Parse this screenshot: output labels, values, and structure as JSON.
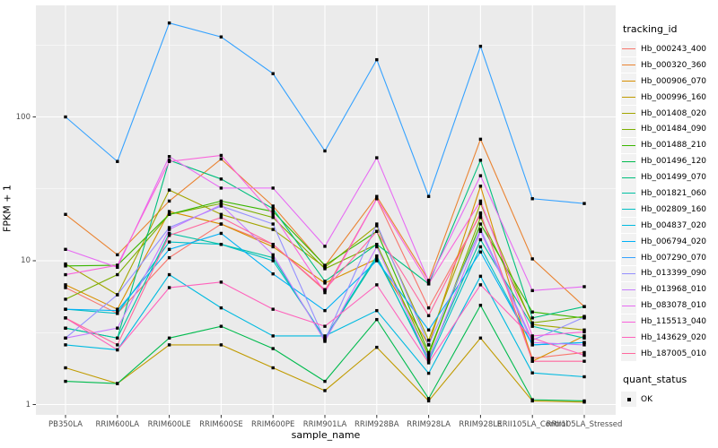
{
  "chart_data": {
    "type": "line",
    "title": "",
    "xlabel": "sample_name",
    "ylabel": "FPKM + 1",
    "y_scale": "log10",
    "y_ticks": [
      100,
      10,
      1
    ],
    "y_minor_gridlines": [
      3.162,
      31.62,
      316.2
    ],
    "ylim": [
      0.8,
      600
    ],
    "grid": "on",
    "legend_position": "right",
    "panel_background": "#EBEBEB",
    "gridline_color": "#FFFFFF",
    "axis_text_color": "#4D4D4D",
    "point_shape": "filled-square",
    "point_color": "#000000",
    "categories": [
      "PB350LA",
      "RRIM600LA",
      "RRIM600LE",
      "RRIM600SE",
      "RRIM600PE",
      "RRIM901LA",
      "RRIM928BA",
      "RRIM928LA",
      "RRIM928LE",
      "RRII105LA_Control",
      "RRII105LA_Stressed"
    ],
    "series": [
      {
        "name": "Hb_000243_400",
        "color": "#F8766D",
        "values": [
          6.5,
          4.3,
          10.5,
          18,
          13,
          6.2,
          27,
          4.7,
          21,
          2.1,
          2.3
        ]
      },
      {
        "name": "Hb_000320_360",
        "color": "#EA8331",
        "values": [
          21,
          11,
          26,
          51,
          24,
          9.2,
          28,
          7.3,
          70,
          10.3,
          4.8
        ]
      },
      {
        "name": "Hb_000906_070",
        "color": "#D89000",
        "values": [
          6.8,
          4.6,
          22,
          18,
          12.5,
          7,
          10.3,
          2.6,
          33,
          2,
          3
        ]
      },
      {
        "name": "Hb_000996_160",
        "color": "#C09B00",
        "values": [
          1.8,
          1.4,
          2.6,
          2.6,
          1.8,
          1.25,
          2.5,
          1.06,
          2.9,
          1.06,
          1.04
        ]
      },
      {
        "name": "Hb_001408_020",
        "color": "#A3A500",
        "values": [
          9.5,
          5.8,
          31,
          21,
          16.5,
          9,
          17.5,
          2.8,
          25,
          3.6,
          3.3
        ]
      },
      {
        "name": "Hb_001484_090",
        "color": "#7CAE00",
        "values": [
          5.4,
          8,
          21,
          25,
          20,
          8.8,
          13,
          2.2,
          20,
          3.7,
          4.1
        ]
      },
      {
        "name": "Hb_001488_210",
        "color": "#39B600",
        "values": [
          9.2,
          9.3,
          21,
          26,
          22,
          9.3,
          16,
          2.3,
          18,
          4.4,
          4
        ]
      },
      {
        "name": "Hb_001496_120",
        "color": "#00BB4E",
        "values": [
          1.45,
          1.4,
          2.9,
          3.5,
          2.45,
          1.45,
          3.9,
          1.1,
          4.9,
          1.08,
          1.06
        ]
      },
      {
        "name": "Hb_001499_070",
        "color": "#00BF7D",
        "values": [
          3.4,
          2.9,
          50,
          37,
          23,
          7.2,
          13,
          6.9,
          50,
          4,
          4.8
        ]
      },
      {
        "name": "Hb_001821_060",
        "color": "#00C1A3",
        "values": [
          3.4,
          2.9,
          15.5,
          13,
          10.5,
          2.85,
          10.5,
          2.1,
          14,
          3.5,
          2.9
        ]
      },
      {
        "name": "Hb_002809_160",
        "color": "#00BFC4",
        "values": [
          4.6,
          4.3,
          13.5,
          13,
          10,
          2.9,
          10.8,
          2,
          12.5,
          2.6,
          2.7
        ]
      },
      {
        "name": "Hb_004837_020",
        "color": "#00BAE0",
        "values": [
          2.6,
          2.4,
          8,
          4.7,
          3,
          3,
          4.5,
          1.65,
          7.8,
          1.66,
          1.56
        ]
      },
      {
        "name": "Hb_006794_020",
        "color": "#00B0F6",
        "values": [
          4.6,
          4.5,
          12,
          15.5,
          8.1,
          4.5,
          10,
          3.3,
          11.5,
          2.6,
          2.7
        ]
      },
      {
        "name": "Hb_007290_070",
        "color": "#35A2FF",
        "values": [
          100,
          49,
          450,
          360,
          200,
          58,
          250,
          28,
          310,
          27,
          25
        ]
      },
      {
        "name": "Hb_013399_090",
        "color": "#9590FF",
        "values": [
          2.9,
          5.8,
          17,
          24,
          18,
          2.8,
          18,
          2.6,
          16.5,
          2.8,
          4.05
        ]
      },
      {
        "name": "Hb_013968_010",
        "color": "#C77CFF",
        "values": [
          2.9,
          3.4,
          16.5,
          24.5,
          11,
          2.75,
          12.5,
          2.05,
          16,
          2.7,
          2.6
        ]
      },
      {
        "name": "Hb_083078_010",
        "color": "#E76BF3",
        "values": [
          12,
          9,
          53,
          32,
          32,
          12.6,
          52,
          7.2,
          39,
          6.2,
          6.6
        ]
      },
      {
        "name": "Hb_115513_040",
        "color": "#FA62DB",
        "values": [
          8,
          9.3,
          49,
          54,
          21,
          6,
          27,
          6.9,
          26,
          3,
          3.2
        ]
      },
      {
        "name": "Hb_143629_020",
        "color": "#FF62BC",
        "values": [
          4,
          2.4,
          6.5,
          7.1,
          4.6,
          3.5,
          6.8,
          1.95,
          6.8,
          2.9,
          2.2
        ]
      },
      {
        "name": "Hb_187005_010",
        "color": "#FF689E",
        "values": [
          4,
          2.6,
          15,
          20,
          13,
          6.3,
          16,
          4.15,
          21.5,
          2,
          2
        ]
      }
    ]
  },
  "legend": {
    "tracking_title": "tracking_id",
    "quant_title": "quant_status",
    "quant_items": [
      {
        "label": "OK",
        "marker": "black-square-marker"
      }
    ]
  }
}
